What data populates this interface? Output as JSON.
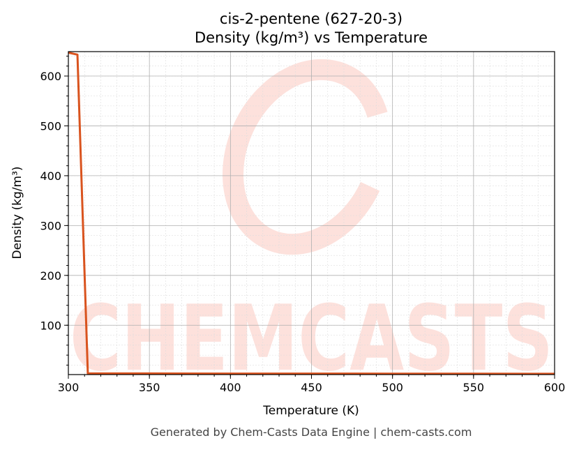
{
  "chart_data": {
    "type": "line",
    "title": "cis-2-pentene (627-20-3)",
    "subtitle": "Density (kg/m³) vs Temperature",
    "x_label": "Temperature (K)",
    "y_label": "Density (kg/m³)",
    "footer": "Generated by Chem-Casts Data Engine | chem-casts.com",
    "watermark": "CHEMCASTS",
    "x": [
      300,
      305.6,
      312,
      350,
      400,
      450,
      500,
      550,
      600
    ],
    "series": [
      {
        "name": "Density",
        "color": "#d9531e",
        "values": [
          647,
          643,
          3.4,
          3.2,
          3.0,
          2.9,
          2.8,
          2.7,
          2.6
        ]
      }
    ],
    "xlim": [
      300,
      600
    ],
    "xticks": [
      300,
      350,
      400,
      450,
      500,
      550,
      600
    ],
    "ylim": [
      1,
      649
    ],
    "yticks": [
      100,
      200,
      300,
      400,
      500,
      600
    ],
    "grid": true,
    "minor_grid": true
  }
}
